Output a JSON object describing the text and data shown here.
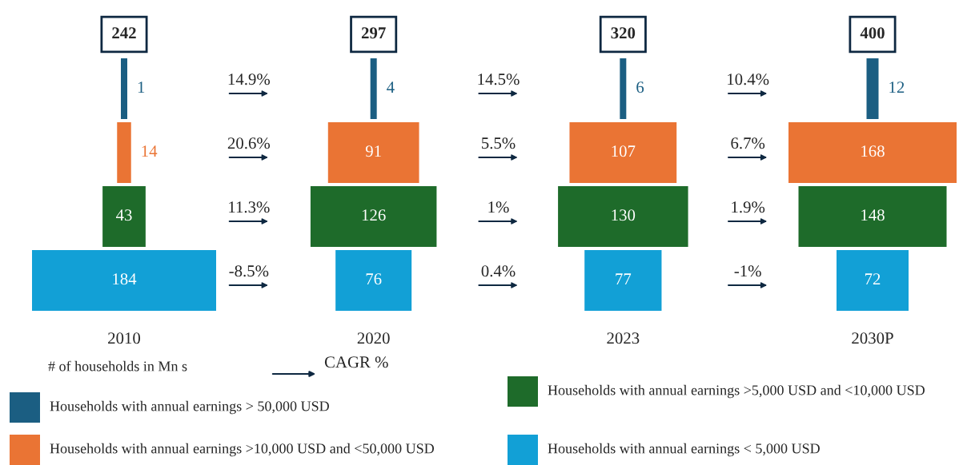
{
  "chart_data": {
    "type": "other",
    "categories": [
      "2010",
      "2020",
      "2023",
      "2030P"
    ],
    "series": [
      {
        "name": "Households with annual earnings > 50,000 USD",
        "color": "#1b5e82",
        "values": [
          1,
          4,
          6,
          12
        ]
      },
      {
        "name": "Households with annual earnings >10,000 USD and <50,000 USD",
        "color": "#ea7434",
        "values": [
          14,
          91,
          107,
          168
        ]
      },
      {
        "name": "Households with annual earnings >5,000 USD and <10,000 USD",
        "color": "#1e6b2a",
        "values": [
          43,
          126,
          130,
          148
        ]
      },
      {
        "name": "Households with annual earnings < 5,000 USD",
        "color": "#12a0d6",
        "values": [
          184,
          76,
          77,
          72
        ]
      }
    ],
    "totals": [
      "242",
      "297",
      "320",
      "400"
    ],
    "data_labels": true,
    "legend": "bottom",
    "annotations": [
      "# of households in Mn s",
      "CAGR %",
      "14.9%",
      "20.6%",
      "11.3%",
      "-8.5%",
      "14.5%",
      "5.5%",
      "1%",
      "0.4%",
      "10.4%",
      "6.7%",
      "1.9%",
      "-1%"
    ]
  }
}
